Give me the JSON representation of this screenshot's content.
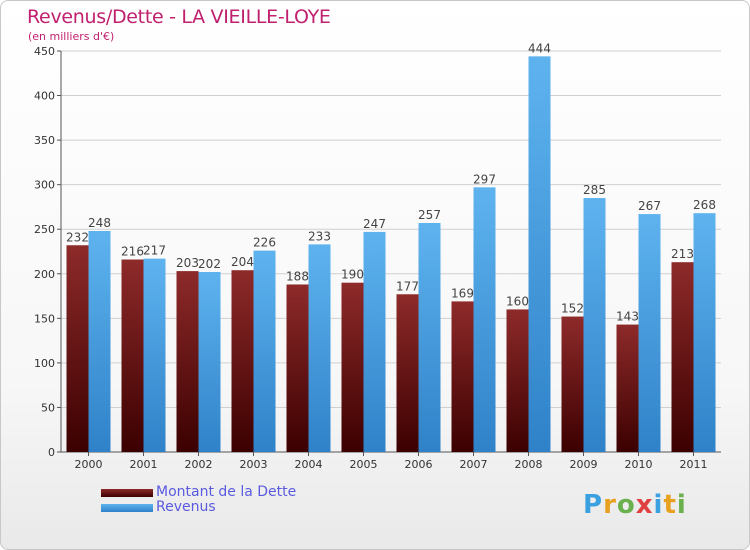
{
  "header": {
    "title": "Revenus/Dette - LA VIEILLE-LOYE",
    "subtitle": "(en milliers d'€)"
  },
  "logo": {
    "text": "Proxiti",
    "colors": [
      "#3aa0e0",
      "#e8a020",
      "#6ab04c",
      "#e04040",
      "#3aa0e0",
      "#e8a020",
      "#6ab04c"
    ]
  },
  "chart_data": {
    "type": "bar",
    "categories": [
      "2000",
      "2001",
      "2002",
      "2003",
      "2004",
      "2005",
      "2006",
      "2007",
      "2008",
      "2009",
      "2010",
      "2011"
    ],
    "series": [
      {
        "name": "Montant de la Dette",
        "color": "#7a1515",
        "values": [
          232,
          216,
          203,
          204,
          188,
          190,
          177,
          169,
          160,
          152,
          143,
          213
        ]
      },
      {
        "name": "Revenus",
        "color": "#4aa3e2",
        "values": [
          248,
          217,
          202,
          226,
          233,
          247,
          257,
          297,
          444,
          285,
          267,
          268
        ]
      }
    ],
    "ylim": [
      0,
      450
    ],
    "yticks": [
      "0",
      "50",
      "100",
      "150",
      "200",
      "250",
      "300",
      "350",
      "400",
      "450"
    ],
    "grid": true,
    "legend_position": "bottom-left"
  }
}
